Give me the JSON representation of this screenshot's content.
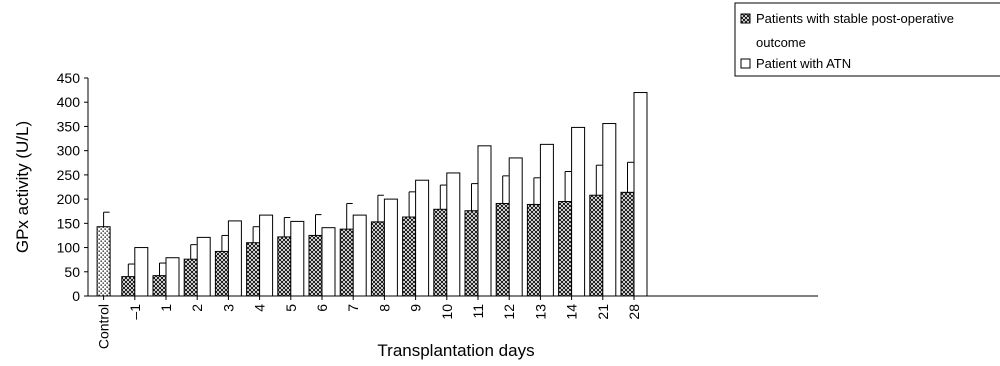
{
  "chart_data": {
    "type": "bar",
    "xlabel": "Transplantation days",
    "ylabel": "GPx activity (U/L)",
    "ylim": [
      0,
      450
    ],
    "yticks": [
      0,
      50,
      100,
      150,
      200,
      250,
      300,
      350,
      400,
      450
    ],
    "grid": false,
    "legend_position": "top-right",
    "control": {
      "label": "Control",
      "value": 143,
      "error": 30,
      "pattern": "dotted"
    },
    "categories": [
      "–1",
      "1",
      "2",
      "3",
      "4",
      "5",
      "6",
      "7",
      "8",
      "9",
      "10",
      "11",
      "12",
      "13",
      "14",
      "21",
      "28"
    ],
    "series": [
      {
        "name": "Patients with stable post-operative outcome",
        "legend_lines": [
          "Patients with stable post-operative",
          "outcome"
        ],
        "pattern": "crosshatch",
        "values": [
          40,
          42,
          76,
          92,
          110,
          122,
          125,
          138,
          153,
          163,
          179,
          176,
          191,
          189,
          195,
          208,
          214
        ],
        "errors": [
          26,
          26,
          30,
          33,
          33,
          40,
          43,
          53,
          55,
          52,
          50,
          56,
          57,
          55,
          62,
          62,
          62
        ]
      },
      {
        "name": "Patient with ATN",
        "legend_lines": [
          "Patient with ATN"
        ],
        "pattern": "white",
        "values": [
          100,
          79,
          121,
          155,
          167,
          154,
          141,
          167,
          200,
          239,
          254,
          310,
          285,
          313,
          348,
          356,
          420
        ]
      }
    ]
  }
}
